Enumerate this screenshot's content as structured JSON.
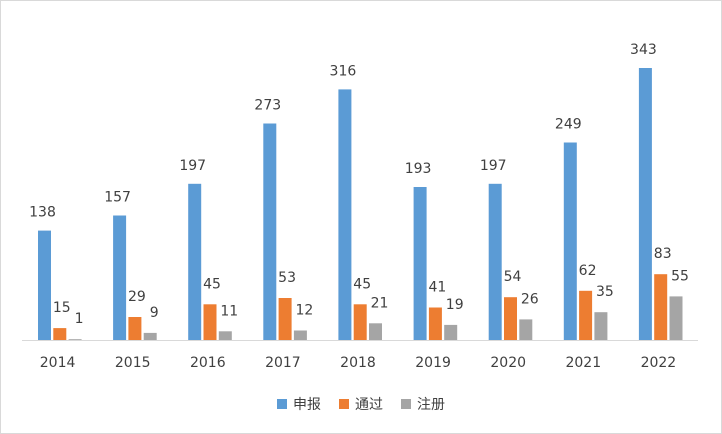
{
  "chart_data": {
    "type": "bar",
    "categories": [
      "2014",
      "2015",
      "2016",
      "2017",
      "2018",
      "2019",
      "2020",
      "2021",
      "2022"
    ],
    "series": [
      {
        "name": "申报",
        "color": "#5b9bd5",
        "values": [
          138,
          157,
          197,
          273,
          316,
          193,
          197,
          249,
          343
        ]
      },
      {
        "name": "通过",
        "color": "#ed7d31",
        "values": [
          15,
          29,
          45,
          53,
          45,
          41,
          54,
          62,
          83
        ]
      },
      {
        "name": "注册",
        "color": "#a5a5a5",
        "values": [
          1,
          9,
          11,
          12,
          21,
          19,
          26,
          35,
          55
        ]
      }
    ],
    "ylim": [
      0,
      350
    ],
    "grid": false,
    "legend_position": "bottom",
    "data_labels": true
  }
}
